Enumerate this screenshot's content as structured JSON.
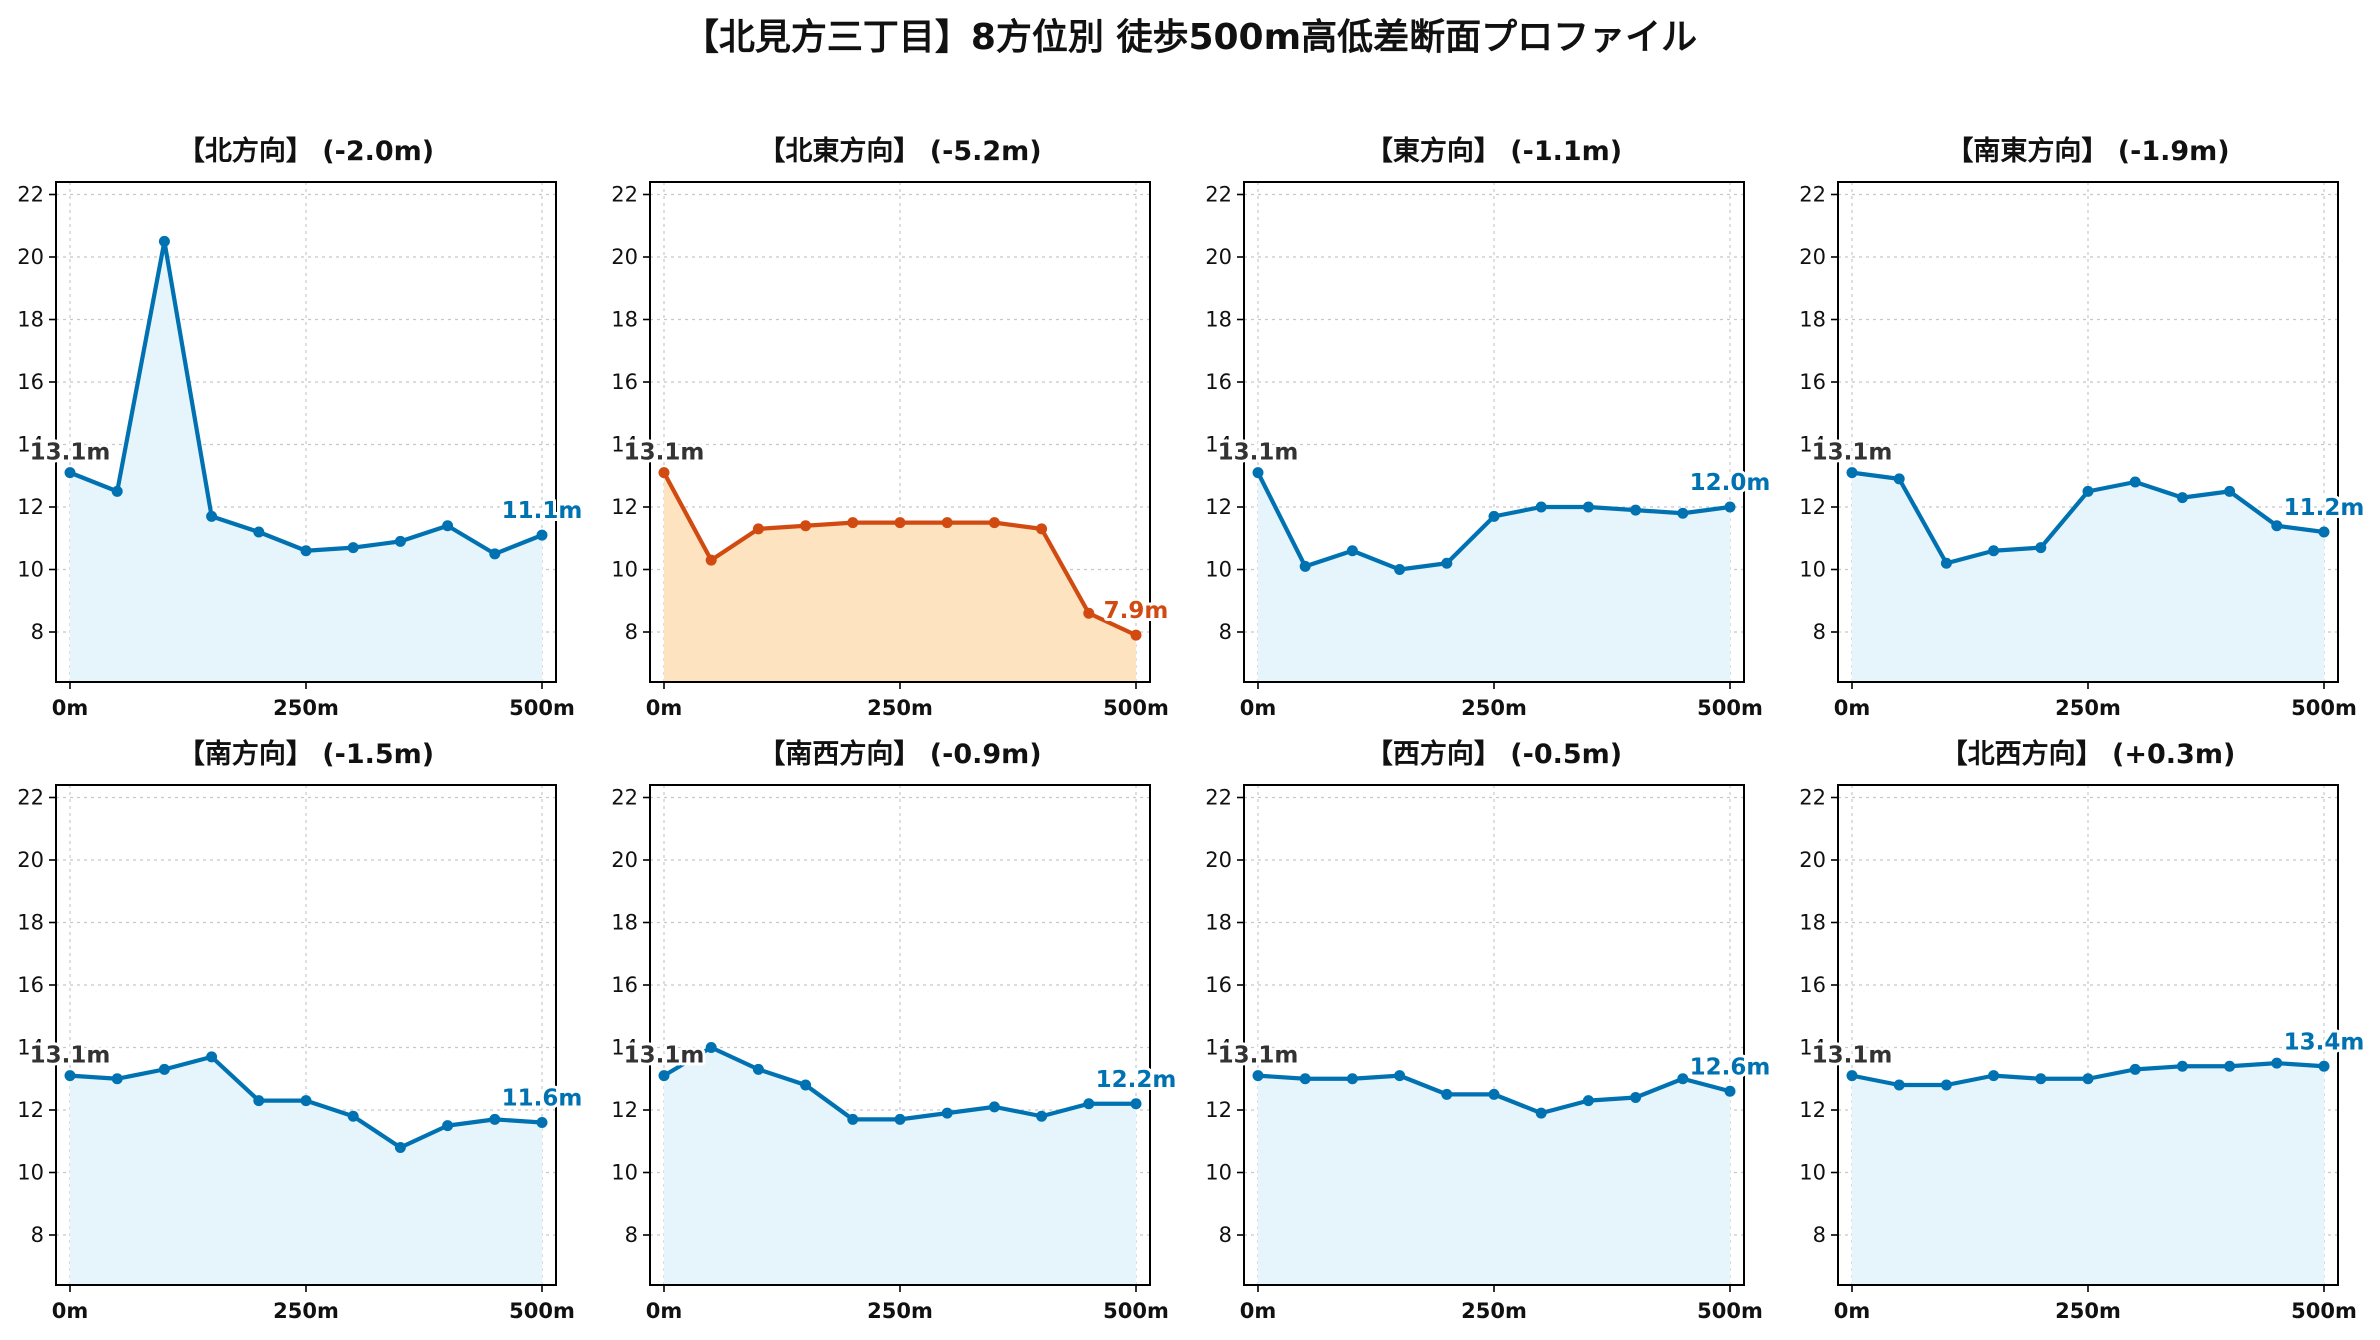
{
  "title": "【北見方三丁目】8方位別 徒歩500m高低差断面プロファイル",
  "colors": {
    "normal": "#0072B2",
    "normal_fill": "#E6F4FB",
    "drop": "#D14A11",
    "drop_fill": "#FDE3C0",
    "start_label": "#333333",
    "grid": "#c8c8c8"
  },
  "chart_data": [
    {
      "type": "line",
      "title": "【北方向】 (-2.0m)",
      "x": [
        0,
        50,
        100,
        150,
        200,
        250,
        300,
        350,
        400,
        450,
        500
      ],
      "values": [
        13.1,
        12.5,
        20.5,
        11.7,
        11.2,
        10.6,
        10.7,
        10.9,
        11.4,
        10.5,
        11.1
      ],
      "start_label": "13.1m",
      "end_label": "11.1m",
      "color": "#0072B2",
      "ylim": [
        6.4,
        22.4
      ],
      "yticks": [
        "8",
        "10",
        "12",
        "14",
        "16",
        "18",
        "20",
        "22"
      ],
      "xticks": [
        "0m",
        "250m",
        "500m"
      ],
      "grid": true
    },
    {
      "type": "line",
      "title": "【北東方向】 (-5.2m)",
      "x": [
        0,
        50,
        100,
        150,
        200,
        250,
        300,
        350,
        400,
        450,
        500
      ],
      "values": [
        13.1,
        10.3,
        11.3,
        11.4,
        11.5,
        11.5,
        11.5,
        11.5,
        11.3,
        8.6,
        7.9
      ],
      "start_label": "13.1m",
      "end_label": "7.9m",
      "color": "#D14A11",
      "ylim": [
        6.4,
        22.4
      ],
      "yticks": [
        "8",
        "10",
        "12",
        "14",
        "16",
        "18",
        "20",
        "22"
      ],
      "xticks": [
        "0m",
        "250m",
        "500m"
      ],
      "grid": true
    },
    {
      "type": "line",
      "title": "【東方向】 (-1.1m)",
      "x": [
        0,
        50,
        100,
        150,
        200,
        250,
        300,
        350,
        400,
        450,
        500
      ],
      "values": [
        13.1,
        10.1,
        10.6,
        10.0,
        10.2,
        11.7,
        12.0,
        12.0,
        11.9,
        11.8,
        12.0
      ],
      "start_label": "13.1m",
      "end_label": "12.0m",
      "color": "#0072B2",
      "ylim": [
        6.4,
        22.4
      ],
      "yticks": [
        "8",
        "10",
        "12",
        "14",
        "16",
        "18",
        "20",
        "22"
      ],
      "xticks": [
        "0m",
        "250m",
        "500m"
      ],
      "grid": true
    },
    {
      "type": "line",
      "title": "【南東方向】 (-1.9m)",
      "x": [
        0,
        50,
        100,
        150,
        200,
        250,
        300,
        350,
        400,
        450,
        500
      ],
      "values": [
        13.1,
        12.9,
        10.2,
        10.6,
        10.7,
        12.5,
        12.8,
        12.3,
        12.5,
        11.4,
        11.2
      ],
      "start_label": "13.1m",
      "end_label": "11.2m",
      "color": "#0072B2",
      "ylim": [
        6.4,
        22.4
      ],
      "yticks": [
        "8",
        "10",
        "12",
        "14",
        "16",
        "18",
        "20",
        "22"
      ],
      "xticks": [
        "0m",
        "250m",
        "500m"
      ],
      "grid": true
    },
    {
      "type": "line",
      "title": "【南方向】 (-1.5m)",
      "x": [
        0,
        50,
        100,
        150,
        200,
        250,
        300,
        350,
        400,
        450,
        500
      ],
      "values": [
        13.1,
        13.0,
        13.3,
        13.7,
        12.3,
        12.3,
        11.8,
        10.8,
        11.5,
        11.7,
        11.6
      ],
      "start_label": "13.1m",
      "end_label": "11.6m",
      "color": "#0072B2",
      "ylim": [
        6.4,
        22.4
      ],
      "yticks": [
        "8",
        "10",
        "12",
        "14",
        "16",
        "18",
        "20",
        "22"
      ],
      "xticks": [
        "0m",
        "250m",
        "500m"
      ],
      "grid": true
    },
    {
      "type": "line",
      "title": "【南西方向】 (-0.9m)",
      "x": [
        0,
        50,
        100,
        150,
        200,
        250,
        300,
        350,
        400,
        450,
        500
      ],
      "values": [
        13.1,
        14.0,
        13.3,
        12.8,
        11.7,
        11.7,
        11.9,
        12.1,
        11.8,
        12.2,
        12.2
      ],
      "start_label": "13.1m",
      "end_label": "12.2m",
      "color": "#0072B2",
      "ylim": [
        6.4,
        22.4
      ],
      "yticks": [
        "8",
        "10",
        "12",
        "14",
        "16",
        "18",
        "20",
        "22"
      ],
      "xticks": [
        "0m",
        "250m",
        "500m"
      ],
      "grid": true
    },
    {
      "type": "line",
      "title": "【西方向】 (-0.5m)",
      "x": [
        0,
        50,
        100,
        150,
        200,
        250,
        300,
        350,
        400,
        450,
        500
      ],
      "values": [
        13.1,
        13.0,
        13.0,
        13.1,
        12.5,
        12.5,
        11.9,
        12.3,
        12.4,
        13.0,
        12.6
      ],
      "start_label": "13.1m",
      "end_label": "12.6m",
      "color": "#0072B2",
      "ylim": [
        6.4,
        22.4
      ],
      "yticks": [
        "8",
        "10",
        "12",
        "14",
        "16",
        "18",
        "20",
        "22"
      ],
      "xticks": [
        "0m",
        "250m",
        "500m"
      ],
      "grid": true
    },
    {
      "type": "line",
      "title": "【北西方向】 (+0.3m)",
      "x": [
        0,
        50,
        100,
        150,
        200,
        250,
        300,
        350,
        400,
        450,
        500
      ],
      "values": [
        13.1,
        12.8,
        12.8,
        13.1,
        13.0,
        13.0,
        13.3,
        13.4,
        13.4,
        13.5,
        13.4
      ],
      "start_label": "13.1m",
      "end_label": "13.4m",
      "color": "#0072B2",
      "ylim": [
        6.4,
        22.4
      ],
      "yticks": [
        "8",
        "10",
        "12",
        "14",
        "16",
        "18",
        "20",
        "22"
      ],
      "xticks": [
        "0m",
        "250m",
        "500m"
      ],
      "grid": true
    }
  ]
}
